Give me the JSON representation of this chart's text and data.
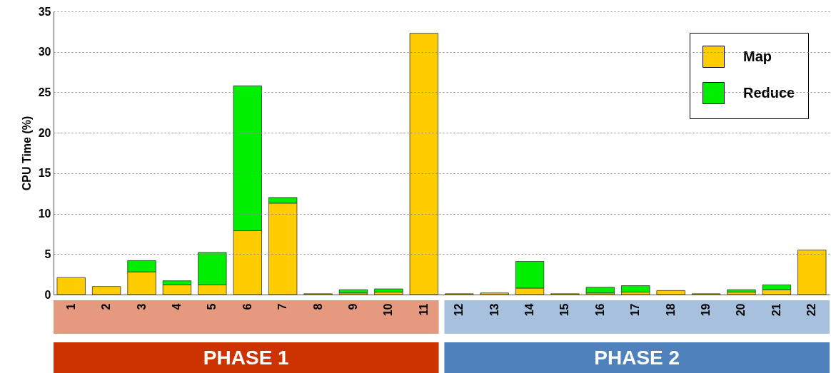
{
  "chart_data": {
    "type": "bar",
    "stacked": true,
    "ylabel": "CPU Time (%)",
    "categories": [
      "1",
      "2",
      "3",
      "4",
      "5",
      "6",
      "7",
      "8",
      "9",
      "10",
      "11",
      "12",
      "13",
      "14",
      "15",
      "16",
      "17",
      "18",
      "19",
      "20",
      "21",
      "22"
    ],
    "series": [
      {
        "name": "Map",
        "color": "#ffcc00",
        "values": [
          2.1,
          1.0,
          2.8,
          1.2,
          1.2,
          7.9,
          11.3,
          0.1,
          0.2,
          0.3,
          32.3,
          0.1,
          0.2,
          0.8,
          0.1,
          0.2,
          0.3,
          0.5,
          0.1,
          0.3,
          0.6,
          5.5
        ]
      },
      {
        "name": "Reduce",
        "color": "#00ee00",
        "values": [
          0,
          0,
          1.4,
          0.5,
          4.0,
          17.9,
          0.7,
          0,
          0.4,
          0.4,
          0,
          0,
          0,
          3.3,
          0,
          0.7,
          0.8,
          0,
          0,
          0.3,
          0.6,
          0
        ]
      }
    ],
    "ylim": [
      0,
      35
    ],
    "yticks": [
      0,
      5,
      10,
      15,
      20,
      25,
      30,
      35
    ],
    "grid": "y",
    "legend": "top right",
    "annotations": [
      "PHASE 1",
      "PHASE 2"
    ]
  }
}
